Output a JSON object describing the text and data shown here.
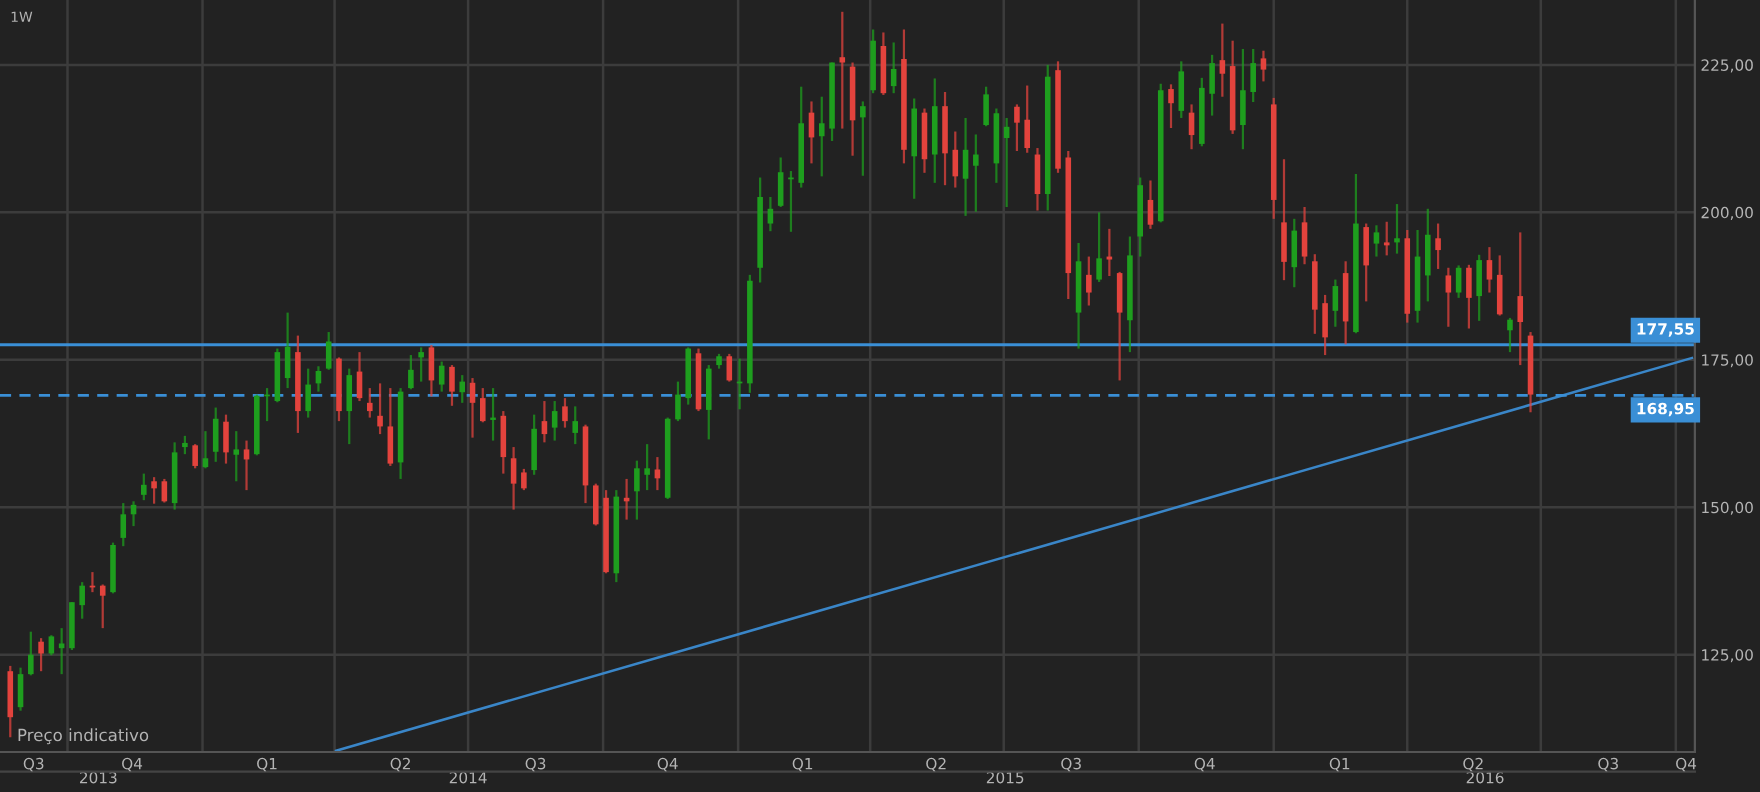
{
  "chart_data": {
    "type": "candlestick",
    "annotations": [
      "1W",
      "Preço indicativo"
    ],
    "xlim": [
      "2013-08-16",
      "2016-10-14"
    ],
    "xticks": [
      {
        "value": "2013-09-08",
        "label": "Q3"
      },
      {
        "value": "2013-10-01",
        "label": null
      },
      {
        "value": "2013-11-14",
        "label": "Q4"
      },
      {
        "value": "2014-01-01",
        "label": null
      },
      {
        "value": "2014-02-14",
        "label": "Q1"
      },
      {
        "value": "2014-04-01",
        "label": null
      },
      {
        "value": "2014-05-16",
        "label": "Q2"
      },
      {
        "value": "2014-07-01",
        "label": null
      },
      {
        "value": "2014-08-16",
        "label": "Q3"
      },
      {
        "value": "2014-10-01",
        "label": null
      },
      {
        "value": "2014-11-14",
        "label": "Q4"
      },
      {
        "value": "2015-01-01",
        "label": null
      },
      {
        "value": "2015-02-14",
        "label": "Q1"
      },
      {
        "value": "2015-04-01",
        "label": null
      },
      {
        "value": "2015-05-16",
        "label": "Q2"
      },
      {
        "value": "2015-07-01",
        "label": null
      },
      {
        "value": "2015-08-16",
        "label": "Q3"
      },
      {
        "value": "2015-10-01",
        "label": null
      },
      {
        "value": "2015-11-15",
        "label": "Q4"
      },
      {
        "value": "2016-01-01",
        "label": null
      },
      {
        "value": "2016-02-15",
        "label": "Q1"
      },
      {
        "value": "2016-04-01",
        "label": null
      },
      {
        "value": "2016-05-16",
        "label": "Q2"
      },
      {
        "value": "2016-07-01",
        "label": null
      },
      {
        "value": "2016-08-16",
        "label": "Q3"
      },
      {
        "value": "2016-10-01",
        "label": null
      },
      {
        "value": "2016-10-08",
        "label": "Q4"
      }
    ],
    "x2lim": [
      "2013-08-16",
      "2016-10-14"
    ],
    "x2ticks": [
      {
        "value": "2013-10-22",
        "label": "2013"
      },
      {
        "value": "2014-07-01",
        "label": "2014"
      },
      {
        "value": "2015-07-02",
        "label": "2015"
      },
      {
        "value": "2016-05-24",
        "label": "2016"
      }
    ],
    "ylim": [
      108.5,
      236
    ],
    "yticks": [
      {
        "value": 125,
        "label": "125,00"
      },
      {
        "value": 150,
        "label": "150,00"
      },
      {
        "value": 175,
        "label": "175,00"
      },
      {
        "value": 200,
        "label": "200,00"
      },
      {
        "value": 225,
        "label": "225,00"
      }
    ],
    "grid": true,
    "ref_lines": [
      {
        "axis": "y",
        "value": 177.55,
        "label": "177,55",
        "color": "#3a8fd6",
        "line_style": "solid"
      },
      {
        "axis": "y",
        "value": 168.95,
        "label": "168,95",
        "color": "#3a8fd6",
        "line_style": "dashed"
      }
    ],
    "series": [
      {
        "type": "line",
        "color": "#3a86c8",
        "x": [
          "2014-04-02",
          "2016-10-12"
        ],
        "values": [
          108.7,
          175.3
        ]
      },
      {
        "x": [
          "2013-08-23",
          "2013-08-30",
          "2013-09-06",
          "2013-09-13",
          "2013-09-20",
          "2013-09-27",
          "2013-10-04",
          "2013-10-11",
          "2013-10-18",
          "2013-10-25",
          "2013-11-01",
          "2013-11-08",
          "2013-11-15",
          "2013-11-22",
          "2013-11-29",
          "2013-12-06",
          "2013-12-13",
          "2013-12-20",
          "2013-12-27",
          "2014-01-03",
          "2014-01-10",
          "2014-01-17",
          "2014-01-24",
          "2014-01-31",
          "2014-02-07",
          "2014-02-14",
          "2014-02-21",
          "2014-02-28",
          "2014-03-07",
          "2014-03-14",
          "2014-03-21",
          "2014-03-28",
          "2014-04-04",
          "2014-04-11",
          "2014-04-18",
          "2014-04-25",
          "2014-05-02",
          "2014-05-09",
          "2014-05-16",
          "2014-05-23",
          "2014-05-30",
          "2014-06-06",
          "2014-06-13",
          "2014-06-20",
          "2014-06-27",
          "2014-07-04",
          "2014-07-11",
          "2014-07-18",
          "2014-07-25",
          "2014-08-01",
          "2014-08-08",
          "2014-08-15",
          "2014-08-22",
          "2014-08-29",
          "2014-09-05",
          "2014-09-12",
          "2014-09-19",
          "2014-09-26",
          "2014-10-03",
          "2014-10-10",
          "2014-10-17",
          "2014-10-24",
          "2014-10-31",
          "2014-11-07",
          "2014-11-14",
          "2014-11-21",
          "2014-11-28",
          "2014-12-05",
          "2014-12-12",
          "2014-12-19",
          "2014-12-26",
          "2015-01-02",
          "2015-01-09",
          "2015-01-16",
          "2015-01-23",
          "2015-01-30",
          "2015-02-06",
          "2015-02-13",
          "2015-02-20",
          "2015-02-27",
          "2015-03-06",
          "2015-03-13",
          "2015-03-20",
          "2015-03-27",
          "2015-04-03",
          "2015-04-10",
          "2015-04-17",
          "2015-04-24",
          "2015-05-01",
          "2015-05-08",
          "2015-05-15",
          "2015-05-22",
          "2015-05-29",
          "2015-06-05",
          "2015-06-12",
          "2015-06-19",
          "2015-06-26",
          "2015-07-03",
          "2015-07-10",
          "2015-07-17",
          "2015-07-24",
          "2015-07-31",
          "2015-08-07",
          "2015-08-14",
          "2015-08-21",
          "2015-08-28",
          "2015-09-04",
          "2015-09-11",
          "2015-09-18",
          "2015-09-25",
          "2015-10-02",
          "2015-10-09",
          "2015-10-16",
          "2015-10-23",
          "2015-10-30",
          "2015-11-06",
          "2015-11-13",
          "2015-11-20",
          "2015-11-27",
          "2015-12-04",
          "2015-12-11",
          "2015-12-18",
          "2015-12-25",
          "2016-01-01",
          "2016-01-08",
          "2016-01-15",
          "2016-01-22",
          "2016-01-29",
          "2016-02-05",
          "2016-02-12",
          "2016-02-19",
          "2016-02-26",
          "2016-03-04",
          "2016-03-11",
          "2016-03-18",
          "2016-03-25",
          "2016-04-01",
          "2016-04-08",
          "2016-04-15",
          "2016-04-22",
          "2016-04-29",
          "2016-05-06",
          "2016-05-13",
          "2016-05-20",
          "2016-05-27",
          "2016-06-03",
          "2016-06-10",
          "2016-06-17",
          "2016-06-24"
        ],
        "ohlc": [
          [
            122.2,
            123.1,
            111.0,
            114.4
          ],
          [
            116.1,
            122.8,
            115.5,
            121.7
          ],
          [
            121.7,
            128.9,
            121.5,
            125.0
          ],
          [
            127.2,
            127.8,
            122.2,
            125.2
          ],
          [
            125.2,
            128.3,
            124.9,
            128.1
          ],
          [
            126.1,
            129.5,
            121.7,
            126.9
          ],
          [
            126.1,
            133.9,
            125.8,
            133.9
          ],
          [
            133.4,
            137.3,
            131.1,
            136.7
          ],
          [
            136.7,
            139.0,
            135.6,
            136.4
          ],
          [
            136.7,
            136.9,
            129.5,
            135.0
          ],
          [
            135.6,
            144.0,
            135.4,
            143.6
          ],
          [
            144.8,
            150.7,
            143.4,
            148.8
          ],
          [
            148.8,
            151.0,
            146.8,
            150.4
          ],
          [
            152.1,
            155.7,
            151.2,
            153.8
          ],
          [
            154.4,
            155.1,
            150.6,
            153.2
          ],
          [
            154.4,
            154.8,
            150.8,
            151.0
          ],
          [
            150.7,
            161.0,
            149.6,
            159.3
          ],
          [
            160.2,
            162.1,
            159.0,
            160.9
          ],
          [
            160.5,
            160.7,
            156.6,
            157.0
          ],
          [
            156.8,
            162.9,
            156.6,
            158.3
          ],
          [
            159.4,
            166.9,
            157.7,
            165.0
          ],
          [
            164.5,
            165.7,
            157.4,
            159.3
          ],
          [
            158.9,
            162.9,
            154.4,
            159.8
          ],
          [
            159.8,
            161.3,
            152.9,
            158.1
          ],
          [
            159.0,
            169.1,
            158.8,
            168.9
          ],
          [
            168.8,
            170.2,
            164.6,
            169.1
          ],
          [
            168.0,
            176.9,
            167.8,
            176.3
          ],
          [
            171.9,
            183.0,
            170.2,
            177.2
          ],
          [
            176.3,
            179.1,
            162.6,
            166.3
          ],
          [
            166.3,
            173.5,
            165.2,
            170.8
          ],
          [
            171.0,
            173.9,
            169.6,
            173.1
          ],
          [
            173.5,
            179.7,
            173.3,
            178.1
          ],
          [
            175.2,
            175.4,
            164.6,
            166.3
          ],
          [
            166.3,
            173.5,
            160.7,
            172.4
          ],
          [
            173.0,
            176.3,
            168.0,
            168.5
          ],
          [
            167.7,
            170.2,
            165.2,
            166.3
          ],
          [
            165.5,
            171.0,
            162.4,
            163.7
          ],
          [
            163.7,
            170.2,
            157.0,
            157.4
          ],
          [
            157.6,
            170.2,
            154.8,
            169.6
          ],
          [
            170.2,
            175.8,
            170.0,
            173.3
          ],
          [
            175.4,
            177.1,
            171.3,
            176.3
          ],
          [
            177.1,
            177.5,
            168.8,
            171.5
          ],
          [
            170.8,
            174.7,
            169.6,
            174.0
          ],
          [
            173.8,
            174.1,
            167.2,
            169.6
          ],
          [
            169.5,
            172.4,
            167.7,
            171.3
          ],
          [
            171.1,
            171.9,
            161.8,
            167.7
          ],
          [
            168.5,
            170.2,
            164.4,
            164.6
          ],
          [
            164.8,
            170.2,
            161.3,
            165.2
          ],
          [
            165.5,
            166.3,
            155.7,
            158.5
          ],
          [
            158.3,
            160.2,
            149.6,
            154.0
          ],
          [
            155.9,
            156.5,
            152.9,
            153.2
          ],
          [
            156.3,
            165.7,
            155.5,
            163.3
          ],
          [
            164.6,
            168.0,
            161.0,
            162.4
          ],
          [
            163.5,
            168.0,
            161.3,
            166.3
          ],
          [
            167.1,
            168.5,
            163.5,
            164.6
          ],
          [
            162.6,
            167.1,
            160.7,
            164.6
          ],
          [
            163.7,
            164.0,
            150.7,
            153.7
          ],
          [
            153.7,
            154.0,
            146.9,
            147.1
          ],
          [
            151.6,
            152.9,
            138.8,
            139.0
          ],
          [
            138.8,
            152.9,
            137.3,
            151.8
          ],
          [
            151.6,
            154.8,
            147.9,
            151.0
          ],
          [
            152.7,
            157.9,
            147.9,
            156.6
          ],
          [
            155.5,
            160.7,
            152.9,
            156.6
          ],
          [
            156.4,
            158.5,
            152.9,
            154.9
          ],
          [
            151.6,
            165.2,
            151.4,
            165.0
          ],
          [
            164.9,
            171.3,
            164.6,
            169.1
          ],
          [
            168.5,
            177.1,
            167.4,
            176.9
          ],
          [
            176.1,
            176.9,
            166.3,
            166.6
          ],
          [
            166.5,
            174.1,
            161.5,
            173.5
          ],
          [
            174.1,
            176.0,
            173.5,
            175.6
          ],
          [
            175.6,
            176.0,
            171.3,
            171.5
          ],
          [
            171.0,
            175.2,
            166.6,
            171.3
          ],
          [
            171.0,
            189.4,
            169.4,
            188.4
          ],
          [
            190.6,
            205.9,
            188.1,
            202.6
          ],
          [
            198.1,
            202.6,
            196.8,
            200.6
          ],
          [
            201.1,
            209.3,
            200.9,
            206.8
          ],
          [
            205.6,
            207.0,
            196.7,
            205.9
          ],
          [
            205.0,
            221.3,
            204.2,
            215.1
          ],
          [
            216.9,
            218.8,
            208.3,
            212.7
          ],
          [
            212.9,
            219.6,
            206.1,
            215.1
          ],
          [
            214.2,
            225.4,
            212.1,
            225.4
          ],
          [
            226.3,
            234.0,
            214.2,
            225.4
          ],
          [
            224.7,
            225.4,
            209.6,
            215.6
          ],
          [
            216.1,
            218.8,
            206.2,
            218.0
          ],
          [
            220.7,
            231.0,
            220.2,
            229.1
          ],
          [
            228.2,
            230.5,
            219.9,
            220.2
          ],
          [
            221.4,
            228.8,
            220.2,
            224.3
          ],
          [
            226.0,
            231.0,
            208.3,
            210.6
          ],
          [
            209.5,
            219.3,
            202.3,
            217.6
          ],
          [
            216.9,
            217.6,
            206.7,
            209.0
          ],
          [
            209.8,
            222.7,
            205.0,
            218.0
          ],
          [
            218.0,
            220.4,
            204.6,
            210.0
          ],
          [
            210.6,
            213.7,
            204.2,
            206.1
          ],
          [
            205.7,
            216.0,
            199.4,
            210.6
          ],
          [
            207.9,
            213.2,
            200.1,
            209.8
          ],
          [
            214.8,
            221.3,
            214.6,
            220.0
          ],
          [
            208.3,
            217.6,
            205.0,
            216.8
          ],
          [
            212.6,
            216.0,
            200.9,
            214.5
          ],
          [
            217.9,
            218.3,
            210.4,
            215.2
          ],
          [
            215.7,
            221.5,
            210.1,
            210.9
          ],
          [
            209.8,
            210.9,
            200.3,
            203.1
          ],
          [
            203.1,
            225.0,
            200.3,
            223.0
          ],
          [
            224.1,
            225.6,
            206.7,
            207.4
          ],
          [
            209.3,
            210.4,
            185.3,
            189.7
          ],
          [
            183.0,
            194.8,
            176.9,
            191.7
          ],
          [
            189.4,
            192.5,
            184.2,
            186.4
          ],
          [
            188.6,
            200.0,
            188.2,
            192.2
          ],
          [
            192.5,
            197.2,
            189.2,
            192.0
          ],
          [
            189.7,
            189.9,
            171.5,
            183.0
          ],
          [
            181.7,
            195.9,
            176.3,
            192.7
          ],
          [
            195.9,
            205.9,
            192.5,
            204.6
          ],
          [
            202.1,
            205.4,
            197.2,
            197.9
          ],
          [
            198.5,
            221.8,
            198.3,
            220.7
          ],
          [
            220.9,
            221.7,
            214.3,
            218.5
          ],
          [
            217.2,
            225.6,
            216.0,
            223.9
          ],
          [
            216.9,
            218.3,
            210.7,
            213.1
          ],
          [
            211.6,
            222.8,
            211.2,
            221.1
          ],
          [
            220.1,
            226.7,
            216.4,
            225.3
          ],
          [
            225.8,
            232.0,
            219.6,
            223.5
          ],
          [
            224.8,
            229.1,
            213.3,
            213.9
          ],
          [
            214.8,
            227.7,
            210.7,
            220.7
          ],
          [
            220.4,
            227.7,
            218.7,
            225.3
          ],
          [
            226.1,
            227.4,
            222.2,
            224.2
          ],
          [
            218.3,
            219.4,
            198.9,
            202.1
          ],
          [
            198.3,
            209.0,
            188.5,
            191.6
          ],
          [
            190.7,
            198.9,
            187.3,
            196.9
          ],
          [
            198.3,
            200.9,
            191.2,
            192.5
          ],
          [
            191.7,
            192.9,
            179.4,
            183.5
          ],
          [
            184.6,
            186.0,
            175.8,
            178.8
          ],
          [
            183.3,
            188.6,
            180.6,
            187.5
          ],
          [
            189.7,
            191.7,
            177.6,
            181.5
          ],
          [
            179.7,
            206.5,
            179.5,
            198.1
          ],
          [
            197.5,
            198.1,
            184.9,
            191.0
          ],
          [
            194.7,
            197.8,
            192.5,
            196.6
          ],
          [
            194.9,
            198.4,
            192.7,
            194.4
          ],
          [
            194.9,
            201.4,
            193.0,
            195.6
          ],
          [
            195.6,
            197.0,
            181.3,
            182.8
          ],
          [
            183.3,
            197.0,
            181.3,
            192.5
          ],
          [
            189.3,
            200.6,
            184.9,
            196.2
          ],
          [
            195.6,
            198.1,
            190.4,
            193.6
          ],
          [
            189.3,
            190.6,
            180.6,
            186.4
          ],
          [
            186.4,
            191.0,
            185.5,
            190.6
          ],
          [
            190.6,
            191.1,
            180.3,
            185.5
          ],
          [
            185.8,
            192.8,
            181.6,
            191.9
          ],
          [
            191.9,
            194.1,
            186.4,
            188.6
          ],
          [
            189.4,
            192.7,
            182.5,
            182.7
          ],
          [
            180.0,
            182.1,
            176.3,
            181.8
          ],
          [
            185.8,
            196.6,
            174.1,
            181.4
          ],
          [
            179.1,
            179.7,
            166.1,
            169.1
          ]
        ],
        "colors": [
          "#e3433d",
          "#1e9e1e",
          "#1e9e1e",
          "#e3433d",
          "#1e9e1e",
          "#1e9e1e",
          "#1e9e1e",
          "#1e9e1e",
          "#e3433d",
          "#e3433d",
          "#1e9e1e",
          "#1e9e1e",
          "#1e9e1e",
          "#1e9e1e",
          "#e3433d",
          "#e3433d",
          "#1e9e1e",
          "#1e9e1e",
          "#e3433d",
          "#1e9e1e",
          "#1e9e1e",
          "#e3433d",
          "#1e9e1e",
          "#e3433d",
          "#1e9e1e",
          "#1e9e1e",
          "#1e9e1e",
          "#1e9e1e",
          "#e3433d",
          "#1e9e1e",
          "#1e9e1e",
          "#1e9e1e",
          "#e3433d",
          "#1e9e1e",
          "#e3433d",
          "#e3433d",
          "#e3433d",
          "#e3433d",
          "#1e9e1e",
          "#1e9e1e",
          "#1e9e1e",
          "#e3433d",
          "#1e9e1e",
          "#e3433d",
          "#1e9e1e",
          "#e3433d",
          "#e3433d",
          "#1e9e1e",
          "#e3433d",
          "#e3433d",
          "#e3433d",
          "#1e9e1e",
          "#e3433d",
          "#1e9e1e",
          "#e3433d",
          "#1e9e1e",
          "#e3433d",
          "#e3433d",
          "#e3433d",
          "#1e9e1e",
          "#e3433d",
          "#1e9e1e",
          "#1e9e1e",
          "#e3433d",
          "#1e9e1e",
          "#1e9e1e",
          "#1e9e1e",
          "#e3433d",
          "#1e9e1e",
          "#1e9e1e",
          "#e3433d",
          "#1e9e1e",
          "#1e9e1e",
          "#1e9e1e",
          "#1e9e1e",
          "#1e9e1e",
          "#1e9e1e",
          "#1e9e1e",
          "#e3433d",
          "#1e9e1e",
          "#1e9e1e",
          "#e3433d",
          "#e3433d",
          "#1e9e1e",
          "#1e9e1e",
          "#e3433d",
          "#1e9e1e",
          "#e3433d",
          "#1e9e1e",
          "#e3433d",
          "#1e9e1e",
          "#e3433d",
          "#e3433d",
          "#1e9e1e",
          "#1e9e1e",
          "#1e9e1e",
          "#1e9e1e",
          "#1e9e1e",
          "#e3433d",
          "#e3433d",
          "#e3433d",
          "#1e9e1e",
          "#e3433d",
          "#e3433d",
          "#1e9e1e",
          "#e3433d",
          "#1e9e1e",
          "#e3433d",
          "#e3433d",
          "#1e9e1e",
          "#1e9e1e",
          "#e3433d",
          "#1e9e1e",
          "#e3433d",
          "#1e9e1e",
          "#e3433d",
          "#1e9e1e",
          "#1e9e1e",
          "#e3433d",
          "#e3433d",
          "#1e9e1e",
          "#1e9e1e",
          "#e3433d",
          "#e3433d",
          "#e3433d",
          "#1e9e1e",
          "#e3433d",
          "#e3433d",
          "#e3433d",
          "#1e9e1e",
          "#e3433d",
          "#1e9e1e",
          "#e3433d",
          "#1e9e1e",
          "#e3433d",
          "#1e9e1e",
          "#e3433d",
          "#1e9e1e",
          "#1e9e1e",
          "#e3433d",
          "#e3433d",
          "#1e9e1e",
          "#e3433d",
          "#1e9e1e",
          "#e3433d",
          "#e3433d",
          "#1e9e1e",
          "#e3433d",
          "#e3433d"
        ]
      }
    ]
  }
}
